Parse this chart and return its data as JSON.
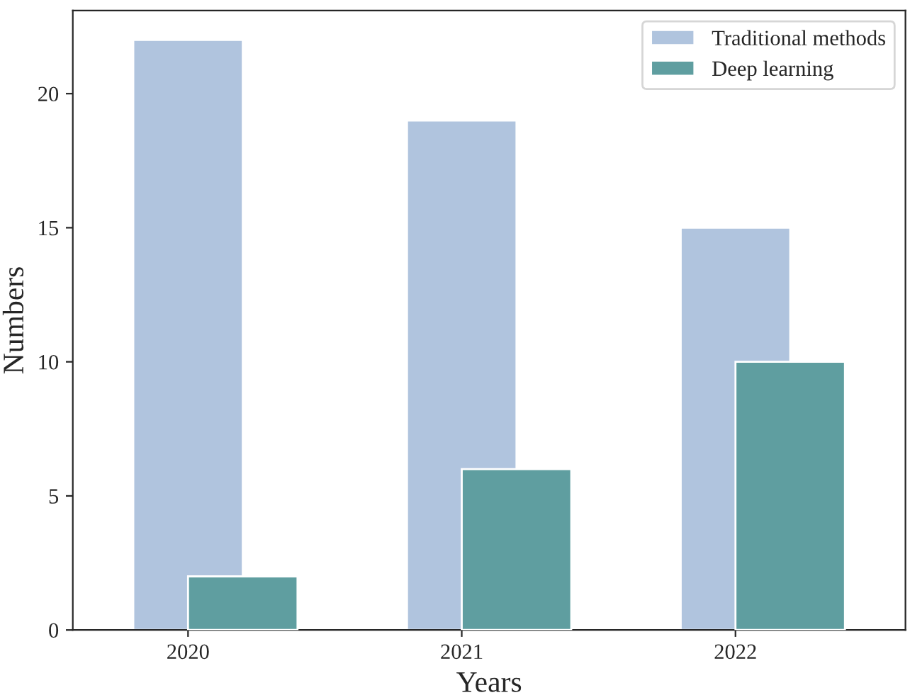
{
  "chart_data": {
    "type": "bar",
    "xlabel": "Years",
    "ylabel": "Numbers",
    "categories": [
      "2020",
      "2021",
      "2022"
    ],
    "series": [
      {
        "name": "Traditional methods",
        "color": "#b0c4de",
        "values": [
          22,
          19,
          15
        ]
      },
      {
        "name": "Deep learning",
        "color": "#5f9ea0",
        "values": [
          2,
          6,
          10
        ]
      }
    ],
    "ylim": [
      0,
      23.1
    ],
    "yticks": [
      0,
      5,
      10,
      15,
      20
    ],
    "grid": false,
    "legend": "top right"
  }
}
